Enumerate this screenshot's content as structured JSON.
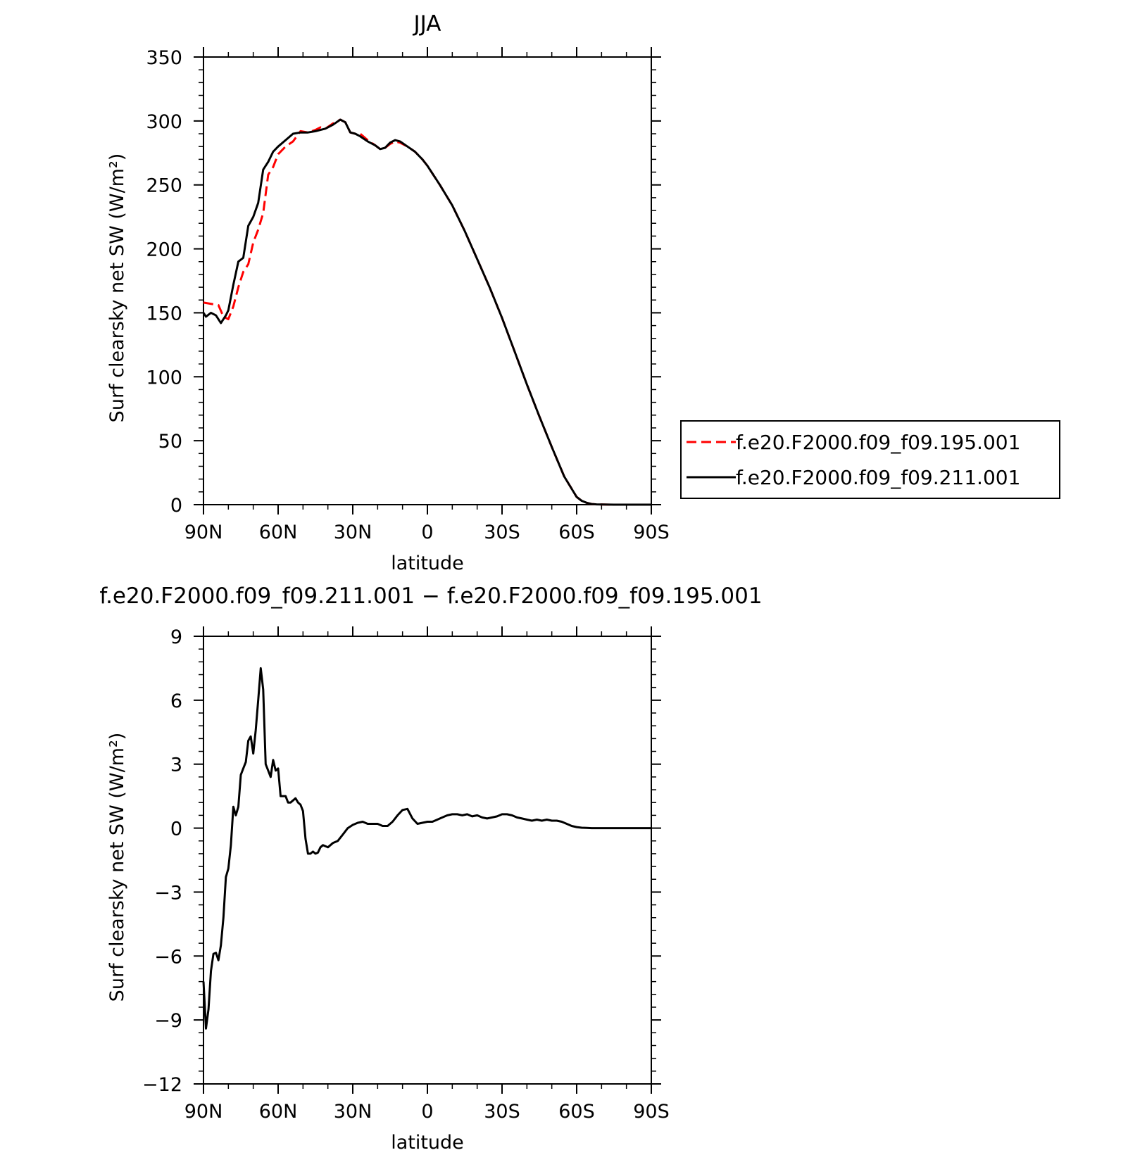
{
  "chart_data": [
    {
      "type": "line",
      "title": "JJA",
      "xlabel": "latitude",
      "ylabel": "Surf clearsky net SW (W/m²)",
      "xlim": [
        90,
        -90
      ],
      "ylim": [
        0,
        350
      ],
      "x_ticks": [
        90,
        60,
        30,
        0,
        -30,
        -60,
        -90
      ],
      "x_tick_labels": [
        "90N",
        "60N",
        "30N",
        "0",
        "30S",
        "60S",
        "90S"
      ],
      "y_ticks": [
        0,
        50,
        100,
        150,
        200,
        250,
        300,
        350
      ],
      "y_tick_labels": [
        "0",
        "50",
        "100",
        "150",
        "200",
        "250",
        "300",
        "350"
      ],
      "legend_position": "right",
      "series": [
        {
          "name": "f.e20.F2000.f09_f09.195.001",
          "color": "#ff0000",
          "dash": "dashed",
          "x": [
            90,
            84,
            82,
            80,
            78,
            76,
            74,
            72,
            70,
            68,
            66,
            64,
            62,
            60,
            57,
            54,
            51,
            48,
            45,
            43,
            41,
            38,
            35,
            33,
            31,
            29,
            27,
            24,
            21,
            19,
            17,
            15,
            13,
            11,
            8,
            5,
            2,
            0,
            -5,
            -10,
            -15,
            -20,
            -25,
            -30,
            -35,
            -40,
            -45,
            -50,
            -55,
            -60,
            -62,
            -64,
            -66,
            -68,
            -70,
            -75,
            -80,
            -90
          ],
          "y": [
            158,
            156,
            147,
            145,
            155,
            170,
            182,
            188,
            205,
            215,
            228,
            258,
            264,
            274,
            280,
            284,
            292,
            291,
            293,
            295,
            294,
            298,
            301,
            299,
            291,
            290,
            290,
            285,
            281,
            278,
            279,
            282,
            284,
            283,
            280,
            276,
            270,
            265,
            250,
            234,
            214,
            192,
            170,
            146,
            120,
            94,
            69,
            45,
            22,
            6,
            3,
            1.5,
            0.5,
            0.2,
            0.1,
            0,
            0,
            0
          ]
        },
        {
          "name": "f.e20.F2000.f09_f09.211.001",
          "color": "#000000",
          "dash": "solid",
          "x": [
            90,
            89,
            87,
            85,
            83,
            81,
            80,
            78,
            76,
            74,
            72,
            70,
            68,
            66,
            64,
            62,
            60,
            57,
            54,
            51,
            48,
            45,
            43,
            41,
            38,
            35,
            33,
            31,
            29,
            27,
            24,
            21,
            19,
            17,
            15,
            13,
            11,
            8,
            5,
            2,
            0,
            -5,
            -10,
            -15,
            -20,
            -25,
            -30,
            -35,
            -40,
            -45,
            -50,
            -55,
            -60,
            -62,
            -64,
            -66,
            -68,
            -70,
            -75,
            -80,
            -90
          ],
          "y": [
            150,
            147,
            150,
            148,
            142,
            148,
            152,
            172,
            190,
            193,
            218,
            225,
            236,
            262,
            268,
            276,
            280,
            285,
            290,
            291,
            291,
            292,
            293,
            294,
            297,
            301,
            299,
            291,
            290,
            288,
            284,
            281,
            278,
            279,
            283,
            285,
            284,
            280,
            276,
            270,
            265,
            250,
            234,
            214,
            192,
            170,
            146,
            120,
            94,
            69,
            45,
            22,
            6,
            3,
            1.5,
            0.5,
            0.2,
            0.1,
            0,
            0,
            0
          ]
        }
      ]
    },
    {
      "type": "line",
      "title": "f.e20.F2000.f09_f09.211.001 − f.e20.F2000.f09_f09.195.001",
      "xlabel": "latitude",
      "ylabel": "Surf clearsky net SW (W/m²)",
      "xlim": [
        90,
        -90
      ],
      "ylim": [
        -12,
        9
      ],
      "x_ticks": [
        90,
        60,
        30,
        0,
        -30,
        -60,
        -90
      ],
      "x_tick_labels": [
        "90N",
        "60N",
        "30N",
        "0",
        "30S",
        "60S",
        "90S"
      ],
      "y_ticks": [
        9,
        6,
        3,
        0,
        -3,
        -6,
        -9,
        -12
      ],
      "y_tick_labels": [
        "9",
        "6",
        "3",
        "0",
        "−3",
        "−6",
        "−9",
        "−12"
      ],
      "series": [
        {
          "color": "#000000",
          "dash": "solid",
          "x": [
            90,
            89,
            88,
            87,
            86,
            85,
            84,
            83,
            82,
            81,
            80,
            79,
            78,
            77,
            76,
            75,
            74,
            73,
            72,
            71,
            70,
            69,
            68,
            67,
            66,
            65,
            64,
            63,
            62,
            61,
            60,
            59,
            58,
            57,
            56,
            55,
            54,
            53,
            52,
            51,
            50,
            49,
            48,
            47,
            46,
            45,
            44,
            43,
            42,
            40,
            38,
            36,
            34,
            32,
            30,
            28,
            26,
            24,
            22,
            20,
            18,
            16,
            14,
            12,
            10,
            8,
            6,
            4,
            2,
            0,
            -2,
            -4,
            -6,
            -8,
            -10,
            -12,
            -14,
            -16,
            -18,
            -20,
            -22,
            -24,
            -26,
            -28,
            -30,
            -32,
            -34,
            -36,
            -38,
            -40,
            -42,
            -44,
            -46,
            -48,
            -50,
            -52,
            -54,
            -56,
            -58,
            -60,
            -62,
            -64,
            -66,
            -68,
            -70,
            -75,
            -80,
            -85,
            -90
          ],
          "y": [
            -7.2,
            -9.4,
            -8.5,
            -6.7,
            -5.9,
            -5.85,
            -6.2,
            -5.5,
            -4.2,
            -2.3,
            -1.9,
            -0.8,
            1.0,
            0.6,
            1.0,
            2.5,
            2.8,
            3.1,
            4.1,
            4.3,
            3.5,
            4.6,
            6.0,
            7.5,
            6.5,
            3.0,
            2.7,
            2.4,
            3.2,
            2.7,
            2.8,
            1.5,
            1.5,
            1.5,
            1.2,
            1.2,
            1.3,
            1.4,
            1.2,
            1.1,
            0.8,
            -0.5,
            -1.2,
            -1.2,
            -1.1,
            -1.2,
            -1.15,
            -0.9,
            -0.8,
            -0.9,
            -0.7,
            -0.6,
            -0.3,
            0.0,
            0.15,
            0.25,
            0.3,
            0.2,
            0.2,
            0.2,
            0.1,
            0.1,
            0.3,
            0.6,
            0.85,
            0.9,
            0.45,
            0.2,
            0.25,
            0.3,
            0.3,
            0.4,
            0.5,
            0.6,
            0.65,
            0.65,
            0.6,
            0.65,
            0.55,
            0.6,
            0.5,
            0.45,
            0.5,
            0.55,
            0.65,
            0.65,
            0.6,
            0.5,
            0.45,
            0.4,
            0.35,
            0.4,
            0.35,
            0.4,
            0.35,
            0.35,
            0.3,
            0.2,
            0.1,
            0.05,
            0.02,
            0.01,
            0.0,
            0.0,
            0.0,
            0.0,
            0.0,
            0.0,
            0.0
          ]
        }
      ]
    }
  ]
}
